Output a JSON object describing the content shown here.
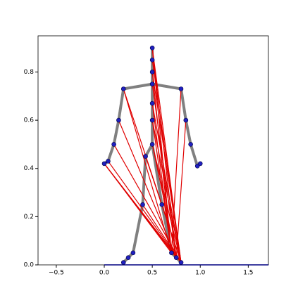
{
  "chart_data": {
    "type": "skeleton",
    "xlim": [
      -0.69,
      1.71
    ],
    "ylim": [
      0,
      0.95
    ],
    "xticks": [
      {
        "value": -0.5,
        "label": "−0.5"
      },
      {
        "value": 0,
        "label": "0.0"
      },
      {
        "value": 0.5,
        "label": "0.5"
      },
      {
        "value": 1,
        "label": "1.0"
      },
      {
        "value": 1.5,
        "label": "1.5"
      }
    ],
    "yticks": [
      {
        "value": 0,
        "label": "0.0"
      },
      {
        "value": 0.2,
        "label": "0.2"
      },
      {
        "value": 0.4,
        "label": "0.4"
      },
      {
        "value": 0.6,
        "label": "0.6"
      },
      {
        "value": 0.8,
        "label": "0.8"
      }
    ],
    "points": {
      "x": [
        0.5,
        0.5,
        0.5,
        0.5,
        0.2,
        0.8,
        0.5,
        0.5,
        0.5,
        0.15,
        0.1,
        0.04,
        0,
        0.85,
        0.9,
        0.97,
        1.0,
        0.43,
        0.4,
        0.3,
        0.25,
        0.2,
        0.6,
        0.7,
        0.75,
        0.8
      ],
      "y": [
        0.9,
        0.85,
        0.8,
        0.75,
        0.73,
        0.73,
        0.67,
        0.6,
        0.5,
        0.6,
        0.5,
        0.43,
        0.42,
        0.6,
        0.5,
        0.41,
        0.42,
        0.45,
        0.25,
        0.05,
        0.03,
        0.01,
        0.25,
        0.05,
        0.03,
        0.01
      ]
    },
    "point_color": "#2020c0",
    "skeleton_color": "#808080",
    "skeleton_edges": [
      [
        0,
        1
      ],
      [
        1,
        2
      ],
      [
        2,
        3
      ],
      [
        4,
        3
      ],
      [
        3,
        5
      ],
      [
        3,
        6
      ],
      [
        6,
        7
      ],
      [
        7,
        8
      ],
      [
        4,
        9
      ],
      [
        9,
        10
      ],
      [
        10,
        11
      ],
      [
        11,
        12
      ],
      [
        5,
        13
      ],
      [
        13,
        14
      ],
      [
        14,
        15
      ],
      [
        15,
        16
      ],
      [
        8,
        17
      ],
      [
        17,
        18
      ],
      [
        18,
        19
      ],
      [
        19,
        20
      ],
      [
        20,
        21
      ],
      [
        8,
        22
      ],
      [
        22,
        23
      ],
      [
        23,
        24
      ],
      [
        24,
        25
      ]
    ],
    "red_color": "#e00000",
    "red_edges": [
      [
        4,
        25
      ],
      [
        4,
        23
      ],
      [
        12,
        25
      ],
      [
        12,
        24
      ],
      [
        12,
        23
      ],
      [
        11,
        25
      ],
      [
        10,
        25
      ],
      [
        9,
        24
      ],
      [
        0,
        25
      ],
      [
        0,
        24
      ],
      [
        0,
        23
      ],
      [
        1,
        25
      ],
      [
        2,
        25
      ],
      [
        2,
        23
      ],
      [
        6,
        25
      ],
      [
        6,
        23
      ],
      [
        7,
        25
      ],
      [
        7,
        23
      ],
      [
        8,
        25
      ],
      [
        8,
        24
      ],
      [
        13,
        24
      ],
      [
        17,
        25
      ],
      [
        18,
        25
      ],
      [
        3,
        24
      ],
      [
        5,
        23
      ]
    ],
    "baseline": {
      "x": [
        0,
        1.71
      ],
      "y": [
        0,
        0
      ],
      "color": "#000080"
    }
  }
}
